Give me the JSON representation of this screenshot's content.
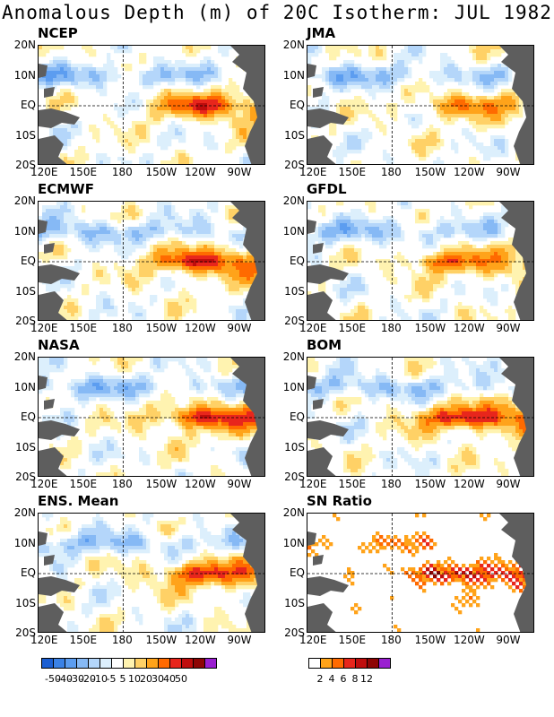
{
  "title": "Anomalous Depth (m) of 20C Isotherm: JUL 1982",
  "x_ticks": [
    "120E",
    "150E",
    "180",
    "150W",
    "120W",
    "90W"
  ],
  "y_ticks": [
    "20N",
    "10N",
    "EQ",
    "10S",
    "20S"
  ],
  "panels": [
    {
      "name": "NCEP",
      "type": "anomaly",
      "core": "120W",
      "warm_strength": 0.7
    },
    {
      "name": "JMA",
      "type": "anomaly",
      "core": "130W",
      "warm_strength": 0.5
    },
    {
      "name": "ECMWF",
      "type": "anomaly",
      "core": "125W",
      "warm_strength": 0.85
    },
    {
      "name": "GFDL",
      "type": "anomaly",
      "core": "140W",
      "warm_strength": 0.65
    },
    {
      "name": "NASA",
      "type": "anomaly",
      "core": "120W",
      "warm_strength": 0.8
    },
    {
      "name": "BOM",
      "type": "anomaly",
      "core": "125W",
      "warm_strength": 0.9
    },
    {
      "name": "ENS. Mean",
      "type": "anomaly",
      "core": "120W",
      "warm_strength": 0.75
    },
    {
      "name": "SN Ratio",
      "type": "ratio",
      "core": "130W",
      "warm_strength": 0.9
    }
  ],
  "anomaly_colorbar": {
    "colors": [
      "#1c5fd2",
      "#3b82e6",
      "#5c9df0",
      "#86b9f5",
      "#b4d6fa",
      "#dceffc",
      "#ffffff",
      "#fff3b0",
      "#ffd166",
      "#ffa31a",
      "#ff6a00",
      "#e8261c",
      "#bf0d0d",
      "#8e0505",
      "#9a1fd0"
    ],
    "labels": [
      "-50",
      "-40",
      "-30",
      "-20",
      "-10",
      "-5",
      "5",
      "10",
      "20",
      "30",
      "40",
      "50"
    ]
  },
  "ratio_colorbar": {
    "colors": [
      "#ffffff",
      "#ffa31a",
      "#ff6a00",
      "#e8261c",
      "#bf0d0d",
      "#8e0505",
      "#9a1fd0"
    ],
    "labels": [
      "2",
      "4",
      "6",
      "8",
      "12"
    ]
  }
}
